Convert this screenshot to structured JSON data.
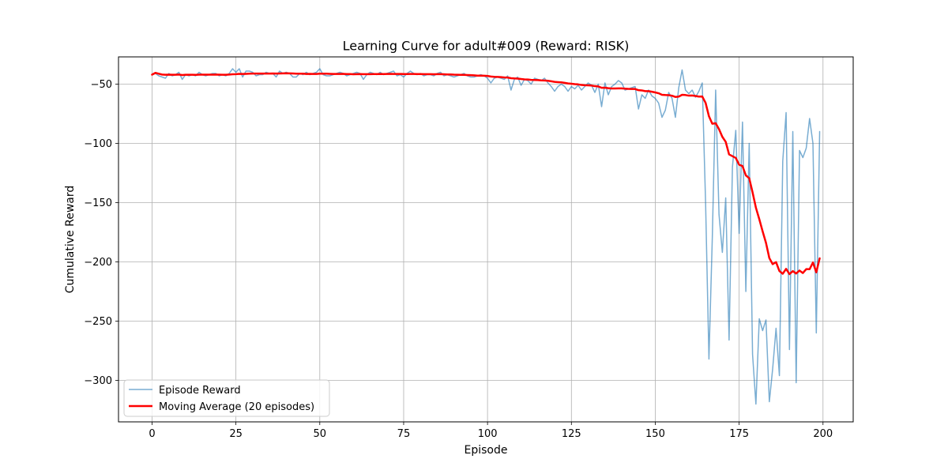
{
  "chart_data": {
    "type": "line",
    "title": "Learning Curve for adult#009 (Reward: RISK)",
    "xlabel": "Episode",
    "ylabel": "Cumulative Reward",
    "xlim": [
      -10,
      209
    ],
    "ylim": [
      -335,
      -27
    ],
    "x_ticks": [
      0,
      25,
      50,
      75,
      100,
      125,
      150,
      175,
      200
    ],
    "y_ticks": [
      -300,
      -250,
      -200,
      -150,
      -100,
      -50
    ],
    "grid": true,
    "legend_position": "lower-left",
    "series": [
      {
        "name": "Episode Reward",
        "color": "#1f77b4",
        "opacity": 0.6,
        "line_width": 1.5,
        "x_start": 0,
        "values": [
          -42,
          -41,
          -43,
          -44,
          -45,
          -41,
          -43,
          -42,
          -40,
          -46,
          -42,
          -43,
          -42,
          -43,
          -40,
          -42,
          -43,
          -42,
          -41,
          -41,
          -43,
          -42,
          -43,
          -41,
          -37,
          -40,
          -37,
          -44,
          -39,
          -39,
          -40,
          -43,
          -42,
          -42,
          -40,
          -41,
          -41,
          -44,
          -39,
          -41,
          -40,
          -41,
          -44,
          -44,
          -41,
          -42,
          -40,
          -42,
          -41,
          -40,
          -37,
          -42,
          -43,
          -43,
          -42,
          -41,
          -40,
          -41,
          -43,
          -42,
          -41,
          -40,
          -41,
          -46,
          -42,
          -40,
          -41,
          -42,
          -40,
          -42,
          -41,
          -40,
          -39,
          -43,
          -42,
          -44,
          -41,
          -39,
          -41,
          -42,
          -41,
          -43,
          -42,
          -42,
          -43,
          -41,
          -40,
          -43,
          -42,
          -43,
          -44,
          -43,
          -42,
          -41,
          -43,
          -44,
          -44,
          -43,
          -42,
          -43,
          -45,
          -49,
          -45,
          -44,
          -45,
          -46,
          -43,
          -55,
          -46,
          -44,
          -51,
          -46,
          -47,
          -50,
          -45,
          -46,
          -47,
          -45,
          -49,
          -52,
          -56,
          -52,
          -50,
          -52,
          -56,
          -52,
          -54,
          -51,
          -55,
          -52,
          -49,
          -51,
          -57,
          -50,
          -69,
          -49,
          -59,
          -52,
          -50,
          -47,
          -49,
          -55,
          -54,
          -53,
          -52,
          -71,
          -59,
          -62,
          -55,
          -60,
          -62,
          -66,
          -78,
          -72,
          -57,
          -62,
          -78,
          -53,
          -38,
          -55,
          -58,
          -55,
          -61,
          -56,
          -49,
          -150,
          -282,
          -180,
          -55,
          -160,
          -192,
          -146,
          -266,
          -120,
          -89,
          -176,
          -82,
          -225,
          -100,
          -278,
          -320,
          -248,
          -258,
          -249,
          -318,
          -290,
          -256,
          -296,
          -115,
          -74,
          -274,
          -90,
          -302,
          -106,
          -112,
          -104,
          -79,
          -100,
          -260,
          -90
        ]
      },
      {
        "name": "Moving Average (20 episodes)",
        "color": "#ff0000",
        "opacity": 1,
        "line_width": 2.5,
        "x_start": 0,
        "values": [
          -42,
          -40.5,
          -41.2,
          -41.9,
          -42.1,
          -42,
          -42.1,
          -42.1,
          -41.9,
          -42.3,
          -42.1,
          -42.1,
          -42.1,
          -42.2,
          -42,
          -42,
          -42,
          -42,
          -42,
          -41.9,
          -42,
          -42.1,
          -42.1,
          -41.9,
          -41.7,
          -41.6,
          -41.3,
          -41.4,
          -41.3,
          -41.2,
          -41.1,
          -41.1,
          -41.1,
          -41.1,
          -41.1,
          -41.1,
          -41,
          -41.1,
          -41,
          -40.9,
          -40.8,
          -40.9,
          -41,
          -41.2,
          -41.2,
          -41.2,
          -41.4,
          -41.3,
          -41.4,
          -41.4,
          -41.2,
          -41.2,
          -41.2,
          -41.3,
          -41.4,
          -41.4,
          -41.4,
          -41.3,
          -41.5,
          -41.5,
          -41.7,
          -41.6,
          -41.5,
          -41.6,
          -41.6,
          -41.6,
          -41.5,
          -41.5,
          -41.4,
          -41.5,
          -41.4,
          -41.3,
          -41.4,
          -41.4,
          -41.4,
          -41.5,
          -41.5,
          -41.4,
          -41.4,
          -41.5,
          -41.5,
          -41.6,
          -41.6,
          -41.6,
          -41.7,
          -41.6,
          -41.6,
          -41.7,
          -41.8,
          -41.8,
          -42,
          -42.1,
          -42.2,
          -42.2,
          -42.3,
          -42.4,
          -42.6,
          -42.8,
          -42.8,
          -42.9,
          -43.1,
          -43.6,
          -43.8,
          -43.9,
          -44.1,
          -44.3,
          -44.4,
          -45,
          -45.2,
          -45.3,
          -45.7,
          -46,
          -46.1,
          -46.4,
          -46.5,
          -46.6,
          -46.8,
          -46.9,
          -47.2,
          -47.6,
          -48.1,
          -48.3,
          -48.5,
          -48.9,
          -49.4,
          -49.7,
          -50,
          -50.2,
          -50.7,
          -50.9,
          -51,
          -51.2,
          -51.7,
          -51.9,
          -53.1,
          -53,
          -53.4,
          -53.7,
          -53.7,
          -53.6,
          -53.6,
          -53.8,
          -54,
          -54.1,
          -54.1,
          -55.1,
          -55.3,
          -55.9,
          -55.9,
          -56.4,
          -57,
          -57.7,
          -59,
          -59.2,
          -59.3,
          -59.8,
          -60.8,
          -60.5,
          -59,
          -59.2,
          -59.7,
          -59.6,
          -60,
          -60.5,
          -60.4,
          -65.8,
          -77.1,
          -83.4,
          -83,
          -88,
          -94.5,
          -98.7,
          -109.3,
          -110.8,
          -112.3,
          -118,
          -119.1,
          -127,
          -129.4,
          -141.3,
          -154.3,
          -163.9,
          -174.2,
          -183.9,
          -196.8,
          -201.9,
          -200.2,
          -207.7,
          -210,
          -205.9,
          -210.3,
          -207.8,
          -209.8,
          -207.3,
          -209.4,
          -206.1,
          -206.2,
          -200.5,
          -208.8,
          -197
        ]
      }
    ]
  }
}
